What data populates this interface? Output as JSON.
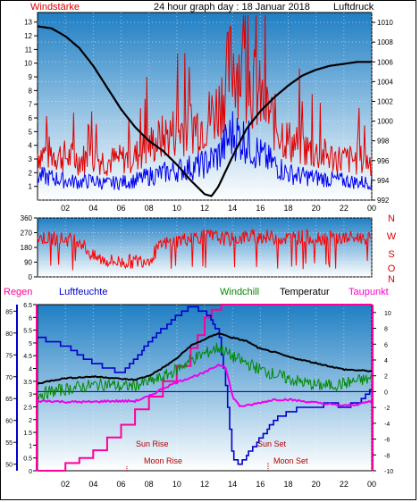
{
  "header": {
    "left_label": "Windstärke",
    "title": "24 hour graph day : 18 Januar 2018",
    "right_label": "Luftdruck"
  },
  "legend": {
    "regen": "Regen",
    "luftfeuchte": "Luftfeuchte",
    "windchill": "Windchill",
    "temperatur": "Temperatur",
    "taupunkt": "Taupunkt"
  },
  "events": {
    "sun_rise": "Sun Rise",
    "sun_set": "Sun Set",
    "moon_rise": "Moon Rise",
    "moon_set": "Moon Set"
  },
  "colors": {
    "windstaerke": "#e00000",
    "luftdruck": "#000000",
    "winddir": "#ff0000",
    "regen": "#ff0099",
    "luftfeuchte": "#0000cc",
    "windchill": "#008800",
    "temperatur": "#000000",
    "taupunkt": "#ee00ee",
    "sky_top": "#1f7fc4",
    "sky_bottom": "#ffffff"
  },
  "chart_data": [
    {
      "type": "line",
      "name": "top",
      "x_ticks": [
        "02",
        "04",
        "06",
        "08",
        "10",
        "12",
        "14",
        "16",
        "18",
        "20",
        "22",
        "00"
      ],
      "y_right_label": "Luftdruck",
      "y_right_ticks": [
        992,
        994,
        996,
        998,
        1000,
        1002,
        1004,
        1006,
        1008,
        1010
      ],
      "y_right_range": [
        992,
        1011
      ],
      "y_left_ticks": [
        1,
        2,
        3,
        4,
        5,
        6,
        7,
        8,
        9,
        10,
        11,
        12,
        13
      ],
      "y_left_label": "Windstärke",
      "y_left_range": [
        0,
        13.7
      ],
      "series": [
        {
          "name": "Luftdruck",
          "x": [
            0,
            1,
            2,
            3,
            4,
            5,
            6,
            7,
            8,
            9,
            10,
            11,
            12,
            12.5,
            13,
            14,
            15,
            16,
            17,
            18,
            19,
            20,
            21,
            22,
            23,
            24
          ],
          "y": [
            1009.6,
            1009.4,
            1008.6,
            1007.4,
            1005.6,
            1003.4,
            1001.2,
            999.4,
            998.0,
            997.0,
            995.6,
            994.0,
            992.6,
            992.4,
            993.4,
            996.4,
            999.2,
            1001.0,
            1002.4,
            1003.6,
            1004.6,
            1005.2,
            1005.6,
            1005.8,
            1006.0,
            1006.0
          ]
        },
        {
          "name": "Windstärke",
          "x": [
            0,
            1,
            2,
            3,
            4,
            5,
            6,
            7,
            8,
            9,
            10,
            11,
            12,
            13,
            14,
            15,
            16,
            17,
            18,
            19,
            20,
            21,
            22,
            23,
            24
          ],
          "y": [
            3,
            3,
            2.8,
            2.6,
            2.8,
            2.5,
            2.6,
            2.8,
            3.5,
            4,
            4.5,
            4.8,
            5,
            6,
            9,
            8,
            6.5,
            5,
            3.8,
            3.4,
            3,
            2.8,
            2.6,
            2.6,
            2.5
          ]
        },
        {
          "name": "Windböen",
          "x": [
            0,
            1,
            2,
            3,
            4,
            5,
            6,
            7,
            8,
            9,
            10,
            11,
            12,
            13,
            14,
            15,
            16,
            17,
            18,
            19,
            20,
            21,
            22,
            23,
            24
          ],
          "y": [
            1.6,
            1.5,
            1.3,
            1.2,
            1.3,
            1.1,
            1.2,
            1.3,
            1.6,
            1.8,
            2,
            2.2,
            2.4,
            3,
            4.5,
            4,
            3,
            2.4,
            1.8,
            1.6,
            1.5,
            1.4,
            1.3,
            1.2,
            1.2
          ]
        }
      ]
    },
    {
      "type": "scatter",
      "name": "winddir",
      "y_left_ticks": [
        0,
        90,
        180,
        270,
        360
      ],
      "y_right_ticks": [
        "N",
        "W",
        "S",
        "O",
        "N"
      ],
      "y_range": [
        0,
        360
      ],
      "series": [
        {
          "name": "Windrichtung",
          "x": [
            0,
            1,
            2,
            3,
            4,
            5,
            6,
            7,
            8,
            9,
            10,
            11,
            12,
            13,
            14,
            15,
            16,
            17,
            18,
            19,
            20,
            21,
            22,
            23,
            24
          ],
          "y": [
            240,
            235,
            230,
            225,
            120,
            100,
            90,
            95,
            110,
            200,
            220,
            240,
            250,
            240,
            230,
            245,
            250,
            240,
            235,
            245,
            240,
            240,
            235,
            240,
            240
          ]
        }
      ]
    },
    {
      "type": "line",
      "name": "bottom",
      "x_ticks": [
        "02",
        "04",
        "06",
        "08",
        "10",
        "12",
        "14",
        "16",
        "18",
        "20",
        "22",
        "00"
      ],
      "y_regen_ticks": [
        0,
        0.5,
        1,
        1.5,
        2,
        2.5,
        3,
        3.5,
        4,
        4.5,
        5,
        5.5,
        6,
        6.5
      ],
      "y_regen_range": [
        0,
        6.5
      ],
      "y_feuchte_ticks": [
        50,
        55,
        60,
        65,
        70,
        75,
        80,
        85
      ],
      "y_feuchte_range": [
        48.5,
        86.5
      ],
      "y_temp_ticks": [
        -10,
        -8,
        -6,
        -4,
        -2,
        0,
        2,
        4,
        6,
        8,
        10
      ],
      "y_temp_range": [
        -10,
        11
      ],
      "series": [
        {
          "name": "Regen",
          "x": [
            0,
            1,
            2,
            3,
            4,
            5,
            6,
            7,
            8,
            9,
            10,
            11,
            11.5,
            12,
            12.5,
            13,
            13.2,
            14,
            15,
            16,
            17,
            18,
            19,
            20,
            21,
            22,
            23,
            24
          ],
          "y": [
            0,
            0,
            0.3,
            0.5,
            0.8,
            1.3,
            1.8,
            2.4,
            2.9,
            3.5,
            4.1,
            4.8,
            5.3,
            6.0,
            6.3,
            6.3,
            6.5,
            6.5,
            6.5,
            6.5,
            6.5,
            6.5,
            6.5,
            6.5,
            6.5,
            6.5,
            6.5,
            6.5
          ]
        },
        {
          "name": "Luftfeuchte",
          "x": [
            0,
            1,
            2,
            3,
            4,
            5,
            6,
            7,
            8,
            9,
            10,
            11,
            12,
            13,
            13.5,
            14,
            14.5,
            15,
            16,
            17,
            18,
            19,
            20,
            21,
            22,
            23,
            24
          ],
          "y": [
            79,
            78,
            77,
            75,
            73,
            72,
            71,
            74,
            78,
            81,
            84,
            86,
            85,
            80,
            68,
            51,
            50,
            52,
            56,
            60,
            62,
            63,
            63,
            64,
            63,
            64,
            67
          ]
        },
        {
          "name": "Temperatur",
          "x": [
            0,
            1,
            2,
            3,
            4,
            5,
            6,
            7,
            8,
            9,
            10,
            11,
            12,
            13,
            14,
            15,
            16,
            17,
            18,
            19,
            20,
            21,
            22,
            23,
            24
          ],
          "y": [
            1.0,
            1.4,
            1.7,
            1.8,
            1.9,
            1.8,
            1.6,
            1.5,
            2.0,
            3.0,
            4.2,
            5.8,
            6.6,
            7.4,
            6.8,
            6.4,
            5.4,
            5.0,
            4.4,
            4.0,
            3.6,
            3.2,
            2.8,
            2.7,
            2.6
          ]
        },
        {
          "name": "Windchill",
          "x": [
            0,
            1,
            2,
            3,
            4,
            5,
            6,
            7,
            8,
            9,
            10,
            11,
            12,
            13,
            14,
            15,
            16,
            17,
            18,
            19,
            20,
            21,
            22,
            23,
            24
          ],
          "y": [
            -0.4,
            0.0,
            0.3,
            0.6,
            0.8,
            1.0,
            0.6,
            0.8,
            1.2,
            1.8,
            2.8,
            4.0,
            4.8,
            5.6,
            4.4,
            3.6,
            2.8,
            2.2,
            1.6,
            1.2,
            0.8,
            0.8,
            1.0,
            1.4,
            1.6
          ]
        },
        {
          "name": "Taupunkt",
          "x": [
            0,
            1,
            2,
            3,
            4,
            5,
            6,
            7,
            8,
            9,
            10,
            11,
            12,
            13,
            13.5,
            14,
            14.5,
            15,
            16,
            17,
            18,
            19,
            20,
            21,
            22,
            23,
            24
          ],
          "y": [
            -1.2,
            -1.2,
            -1.3,
            -1.3,
            -1.3,
            -1.2,
            -1.2,
            -1.2,
            -0.6,
            0.4,
            1.2,
            1.8,
            2.4,
            3.4,
            3.2,
            -0.6,
            -1.8,
            -1.8,
            -1.4,
            -1.0,
            -1.0,
            -1.2,
            -1.4,
            -1.6,
            -1.8,
            -1.6,
            -1.2
          ]
        }
      ]
    }
  ]
}
